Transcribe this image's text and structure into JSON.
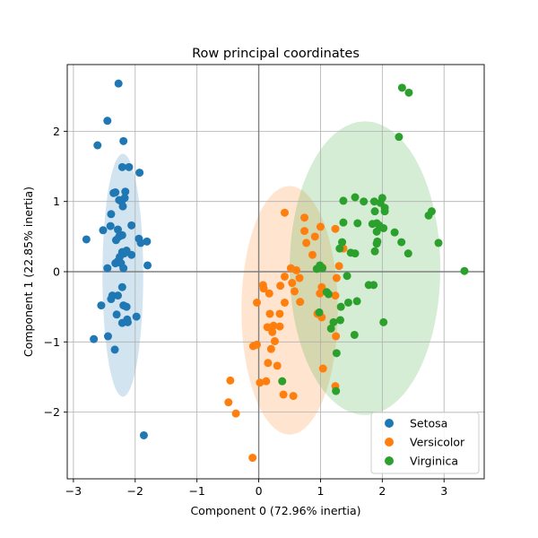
{
  "chart_data": {
    "type": "scatter",
    "title": "Row principal coordinates",
    "xlabel": "Component 0 (72.96% inertia)",
    "ylabel": "Component 1 (22.85% inertia)",
    "xlim": [
      -3.1,
      3.65
    ],
    "ylim": [
      -2.95,
      2.95
    ],
    "xticks": [
      -3,
      -2,
      -1,
      0,
      1,
      2,
      3
    ],
    "yticks": [
      -2,
      -1,
      0,
      1,
      2
    ],
    "xtick_labels": [
      "−3",
      "−2",
      "−1",
      "0",
      "1",
      "2",
      "3"
    ],
    "ytick_labels": [
      "−2",
      "−1",
      "0",
      "1",
      "2"
    ],
    "grid": true,
    "legend_position": "lower-right",
    "series": [
      {
        "name": "Setosa",
        "color": "#1f77b4",
        "ellipse": {
          "cx": -2.2,
          "cy": -0.05,
          "rx": 0.33,
          "ry": 1.73
        },
        "points": [
          [
            -2.27,
            2.68
          ],
          [
            -2.45,
            2.15
          ],
          [
            -2.61,
            1.8
          ],
          [
            -2.19,
            1.86
          ],
          [
            -2.21,
            1.49
          ],
          [
            -2.1,
            1.49
          ],
          [
            -1.93,
            1.41
          ],
          [
            -2.35,
            1.12
          ],
          [
            -2.32,
            1.13
          ],
          [
            -2.16,
            1.14
          ],
          [
            -2.17,
            1.05
          ],
          [
            -2.22,
            1.0
          ],
          [
            -2.26,
            1.02
          ],
          [
            -2.2,
            0.93
          ],
          [
            -2.39,
            0.82
          ],
          [
            -2.06,
            0.66
          ],
          [
            -2.4,
            0.65
          ],
          [
            -2.28,
            0.6
          ],
          [
            -2.52,
            0.59
          ],
          [
            -2.21,
            0.52
          ],
          [
            -2.26,
            0.5
          ],
          [
            -2.31,
            0.45
          ],
          [
            -1.94,
            0.47
          ],
          [
            -1.91,
            0.41
          ],
          [
            -1.81,
            0.43
          ],
          [
            -2.14,
            0.3
          ],
          [
            -2.21,
            0.28
          ],
          [
            -2.25,
            0.21
          ],
          [
            -2.18,
            0.26
          ],
          [
            -2.06,
            0.24
          ],
          [
            -2.79,
            0.46
          ],
          [
            -2.28,
            0.15
          ],
          [
            -2.32,
            0.12
          ],
          [
            -2.23,
            0.12
          ],
          [
            -1.8,
            0.09
          ],
          [
            -2.45,
            0.05
          ],
          [
            -2.19,
            0.05
          ],
          [
            -2.21,
            -0.22
          ],
          [
            -2.28,
            -0.34
          ],
          [
            -2.37,
            -0.34
          ],
          [
            -2.39,
            -0.39
          ],
          [
            -2.55,
            -0.48
          ],
          [
            -2.19,
            -0.48
          ],
          [
            -2.14,
            -0.5
          ],
          [
            -1.98,
            -0.64
          ],
          [
            -2.3,
            -0.61
          ],
          [
            -2.13,
            -0.68
          ],
          [
            -2.12,
            -0.72
          ],
          [
            -2.21,
            -0.73
          ],
          [
            -2.67,
            -0.96
          ],
          [
            -2.44,
            -0.92
          ],
          [
            -2.33,
            -1.11
          ],
          [
            -1.86,
            -2.33
          ]
        ]
      },
      {
        "name": "Versicolor",
        "color": "#ff7f0e",
        "ellipse": {
          "cx": 0.5,
          "cy": -0.55,
          "rx": 0.78,
          "ry": 1.77
        },
        "points": [
          [
            0.74,
            0.77
          ],
          [
            1.0,
            0.64
          ],
          [
            0.42,
            0.84
          ],
          [
            1.37,
            0.33
          ],
          [
            1.24,
            0.61
          ],
          [
            0.77,
            0.41
          ],
          [
            0.91,
            0.5
          ],
          [
            0.74,
            0.58
          ],
          [
            0.87,
            0.24
          ],
          [
            1.3,
            0.08
          ],
          [
            0.61,
            0.02
          ],
          [
            1.03,
            0.06
          ],
          [
            0.52,
            0.05
          ],
          [
            0.42,
            -0.07
          ],
          [
            0.66,
            -0.09
          ],
          [
            1.26,
            -0.09
          ],
          [
            0.07,
            -0.19
          ],
          [
            0.08,
            -0.24
          ],
          [
            0.54,
            -0.16
          ],
          [
            0.58,
            -0.28
          ],
          [
            0.17,
            -0.31
          ],
          [
            0.35,
            -0.2
          ],
          [
            1.02,
            -0.22
          ],
          [
            0.99,
            -0.31
          ],
          [
            1.24,
            -0.34
          ],
          [
            -0.03,
            -0.44
          ],
          [
            0.42,
            -0.44
          ],
          [
            0.67,
            -0.43
          ],
          [
            0.18,
            -0.6
          ],
          [
            0.34,
            -0.6
          ],
          [
            0.95,
            -0.6
          ],
          [
            1.02,
            -0.65
          ],
          [
            0.24,
            -0.77
          ],
          [
            0.14,
            -0.79
          ],
          [
            0.22,
            -0.86
          ],
          [
            0.34,
            -0.78
          ],
          [
            1.25,
            -0.92
          ],
          [
            0.26,
            -0.99
          ],
          [
            -0.03,
            -1.04
          ],
          [
            -0.09,
            -1.06
          ],
          [
            0.2,
            -1.1
          ],
          [
            0.15,
            -1.3
          ],
          [
            0.3,
            -1.34
          ],
          [
            1.04,
            -1.38
          ],
          [
            0.12,
            -1.56
          ],
          [
            0.02,
            -1.58
          ],
          [
            -0.46,
            -1.55
          ],
          [
            1.24,
            -1.63
          ],
          [
            0.4,
            -1.75
          ],
          [
            0.56,
            -1.77
          ],
          [
            -0.49,
            -1.86
          ],
          [
            -0.37,
            -2.02
          ],
          [
            -0.1,
            -2.65
          ]
        ]
      },
      {
        "name": "Virginica",
        "color": "#2ca02c",
        "ellipse": {
          "cx": 1.72,
          "cy": 0.05,
          "rx": 1.22,
          "ry": 2.09
        },
        "points": [
          [
            2.32,
            2.62
          ],
          [
            2.43,
            2.55
          ],
          [
            2.27,
            1.92
          ],
          [
            1.37,
            1.01
          ],
          [
            1.56,
            1.06
          ],
          [
            1.7,
            1.0
          ],
          [
            1.87,
            1.0
          ],
          [
            2.0,
            1.05
          ],
          [
            1.97,
            0.98
          ],
          [
            2.04,
            0.91
          ],
          [
            2.04,
            0.86
          ],
          [
            1.88,
            0.86
          ],
          [
            2.8,
            0.86
          ],
          [
            2.75,
            0.8
          ],
          [
            1.37,
            0.7
          ],
          [
            1.6,
            0.69
          ],
          [
            1.91,
            0.69
          ],
          [
            1.84,
            0.68
          ],
          [
            1.95,
            0.66
          ],
          [
            2.02,
            0.62
          ],
          [
            1.91,
            0.57
          ],
          [
            2.2,
            0.56
          ],
          [
            1.92,
            0.43
          ],
          [
            1.91,
            0.4
          ],
          [
            1.35,
            0.42
          ],
          [
            2.31,
            0.42
          ],
          [
            2.91,
            0.41
          ],
          [
            1.31,
            0.33
          ],
          [
            1.49,
            0.27
          ],
          [
            1.56,
            0.26
          ],
          [
            1.88,
            0.29
          ],
          [
            2.42,
            0.26
          ],
          [
            0.99,
            0.09
          ],
          [
            0.94,
            0.04
          ],
          [
            1.03,
            0.05
          ],
          [
            3.33,
            0.01
          ],
          [
            1.43,
            -0.06
          ],
          [
            1.78,
            -0.19
          ],
          [
            1.86,
            -0.19
          ],
          [
            1.1,
            -0.29
          ],
          [
            1.13,
            -0.32
          ],
          [
            1.45,
            -0.44
          ],
          [
            1.59,
            -0.42
          ],
          [
            1.33,
            -0.5
          ],
          [
            0.98,
            -0.58
          ],
          [
            1.21,
            -0.72
          ],
          [
            1.32,
            -0.69
          ],
          [
            2.02,
            -0.72
          ],
          [
            1.17,
            -0.81
          ],
          [
            1.55,
            -0.9
          ],
          [
            1.26,
            -1.16
          ],
          [
            0.38,
            -1.56
          ],
          [
            1.25,
            -1.7
          ]
        ]
      }
    ]
  }
}
